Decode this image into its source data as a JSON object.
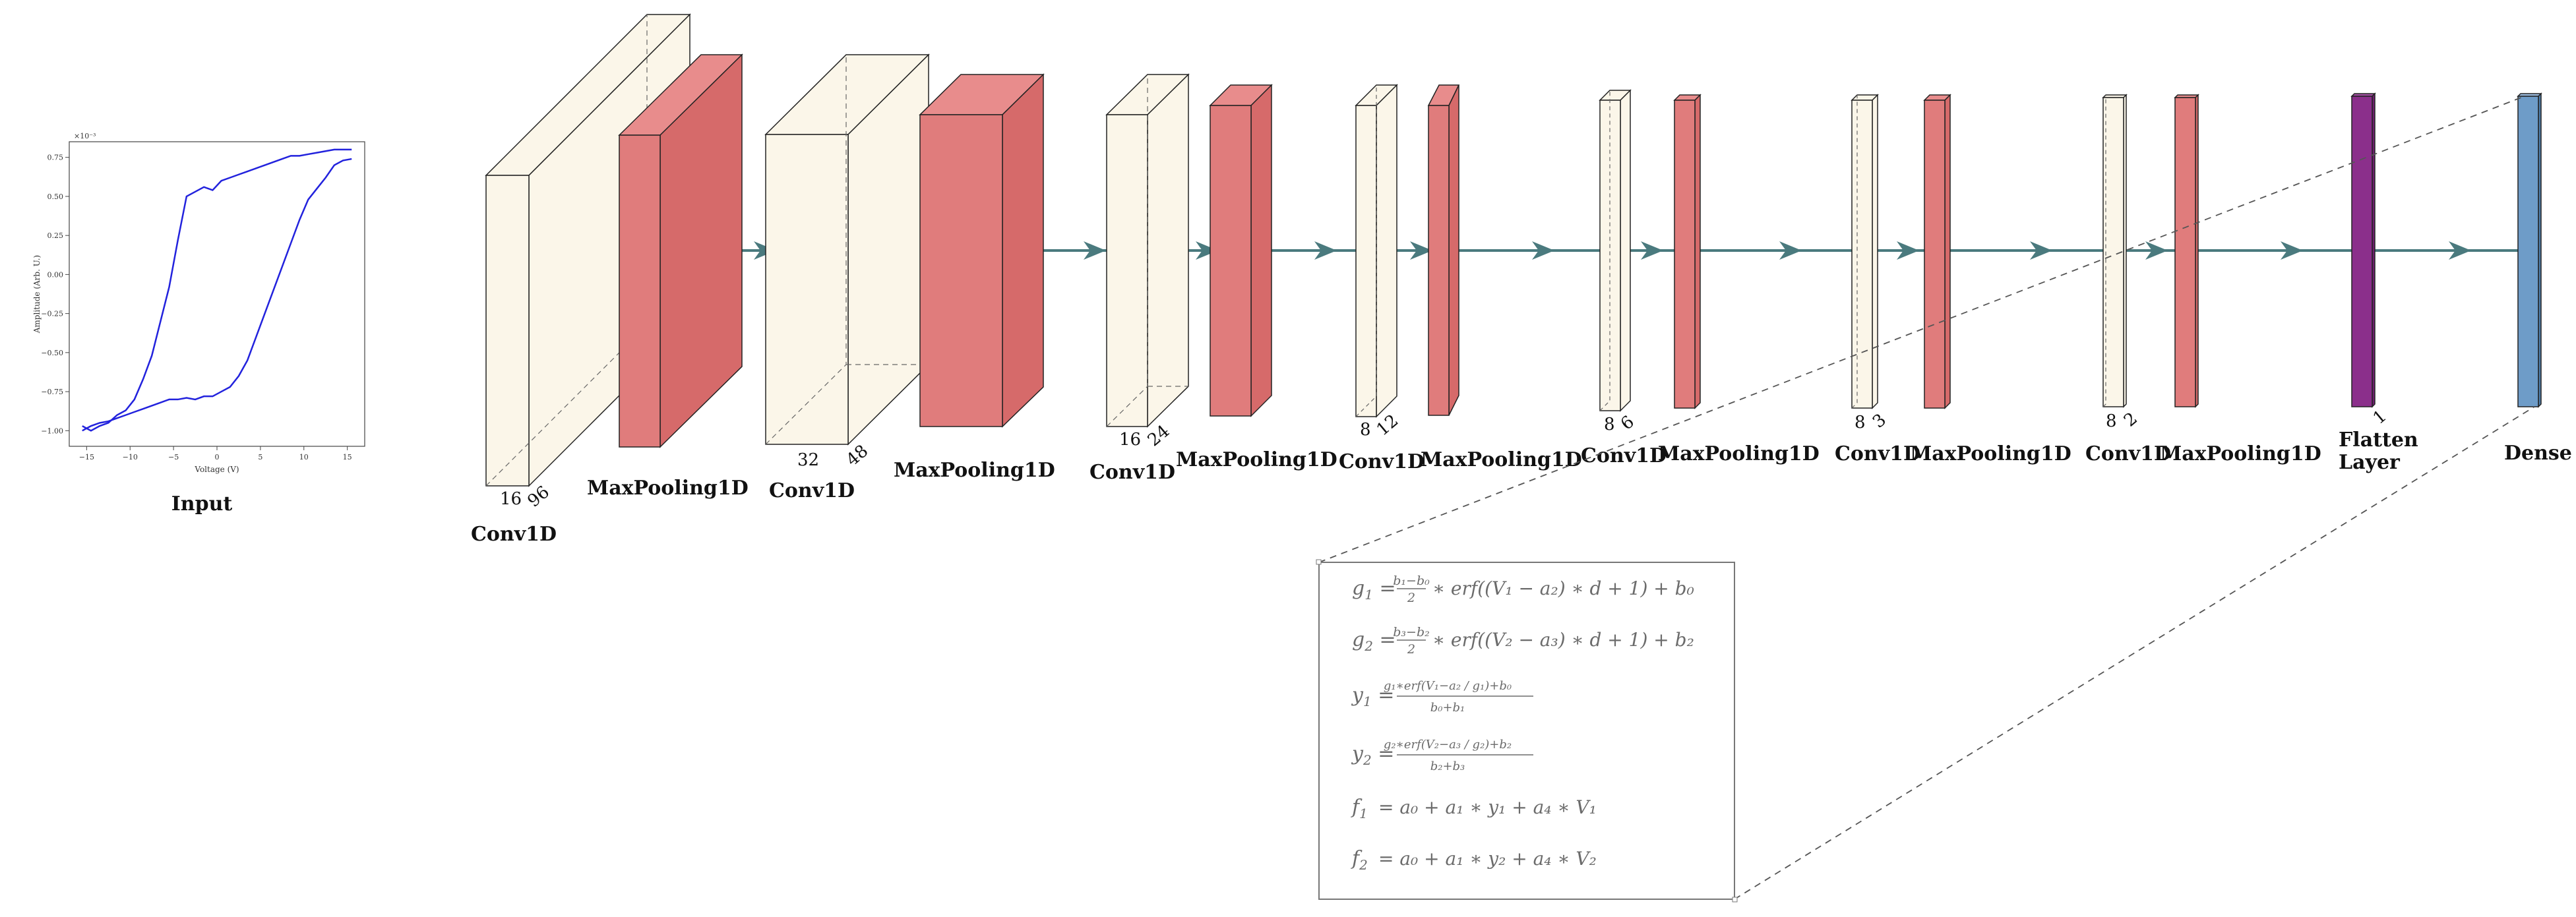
{
  "input": {
    "label": "Input",
    "chart_data": {
      "type": "line",
      "xlabel": "Voltage (V)",
      "ylabel": "Amplitude (Arb. U.)",
      "exponent": "×10⁻³",
      "xlim": [
        -17,
        17
      ],
      "ylim": [
        -1.1,
        0.85
      ],
      "xticks": [
        -15,
        -10,
        -5,
        0,
        5,
        10,
        15
      ],
      "yticks": [
        -1.0,
        -0.75,
        -0.5,
        -0.25,
        0.0,
        0.25,
        0.5,
        0.75
      ],
      "xtick_labels": [
        "−15",
        "−10",
        "−5",
        "0",
        "5",
        "10",
        "15"
      ],
      "ytick_labels": [
        "−1.00",
        "−0.75",
        "−0.50",
        "−0.25",
        "0.00",
        "0.25",
        "0.50",
        "0.75"
      ],
      "color": "#2222dd",
      "series": [
        {
          "x": [
            -15.5,
            -14.5,
            -13.5,
            -12.5,
            -11.5,
            -10.5,
            -9.5,
            -8.5,
            -7.5,
            -6.5,
            -5.5,
            -4.5,
            -3.5,
            -2.5,
            -1.5,
            -0.5,
            0.5,
            1.5,
            2.5,
            3.5,
            4.5,
            5.5,
            6.5,
            7.5,
            8.5,
            9.5,
            10.5,
            11.5,
            12.5,
            13.5,
            14.5,
            15.5
          ],
          "y": [
            -0.97,
            -1.0,
            -0.97,
            -0.95,
            -0.9,
            -0.87,
            -0.8,
            -0.67,
            -0.52,
            -0.3,
            -0.08,
            0.22,
            0.5,
            0.53,
            0.56,
            0.54,
            0.6,
            0.62,
            0.64,
            0.66,
            0.68,
            0.7,
            0.72,
            0.74,
            0.76,
            0.76,
            0.77,
            0.78,
            0.79,
            0.8,
            0.8,
            0.8
          ]
        },
        {
          "x": [
            -15.5,
            -14.5,
            -13.5,
            -12.5,
            -11.5,
            -10.5,
            -9.5,
            -8.5,
            -7.5,
            -6.5,
            -5.5,
            -4.5,
            -3.5,
            -2.5,
            -1.5,
            -0.5,
            0.5,
            1.5,
            2.5,
            3.5,
            4.5,
            5.5,
            6.5,
            7.5,
            8.5,
            9.5,
            10.5,
            11.5,
            12.5,
            13.5,
            14.5,
            15.5
          ],
          "y": [
            -1.0,
            -0.97,
            -0.95,
            -0.94,
            -0.92,
            -0.9,
            -0.88,
            -0.86,
            -0.84,
            -0.82,
            -0.8,
            -0.8,
            -0.79,
            -0.8,
            -0.78,
            -0.78,
            -0.75,
            -0.72,
            -0.65,
            -0.55,
            -0.4,
            -0.25,
            -0.1,
            0.05,
            0.2,
            0.35,
            0.48,
            0.55,
            0.62,
            0.7,
            0.73,
            0.74
          ]
        }
      ]
    }
  },
  "layers": [
    {
      "label": "Conv1D",
      "dim_a": "16",
      "dim_b": "96"
    },
    {
      "label": "MaxPooling1D",
      "dim_a": "",
      "dim_b": ""
    },
    {
      "label": "Conv1D",
      "dim_a": "32",
      "dim_b": "48"
    },
    {
      "label": "MaxPooling1D",
      "dim_a": "",
      "dim_b": ""
    },
    {
      "label": "Conv1D",
      "dim_a": "16",
      "dim_b": "24"
    },
    {
      "label": "MaxPooling1D",
      "dim_a": "",
      "dim_b": ""
    },
    {
      "label": "Conv1D",
      "dim_a": "8",
      "dim_b": "12"
    },
    {
      "label": "MaxPooling1D",
      "dim_a": "",
      "dim_b": ""
    },
    {
      "label": "Conv1D",
      "dim_a": "8",
      "dim_b": "6"
    },
    {
      "label": "MaxPooling1D",
      "dim_a": "",
      "dim_b": ""
    },
    {
      "label": "Conv1D",
      "dim_a": "8",
      "dim_b": "3"
    },
    {
      "label": "MaxPooling1D",
      "dim_a": "",
      "dim_b": ""
    },
    {
      "label": "Conv1D",
      "dim_a": "8",
      "dim_b": "2"
    },
    {
      "label": "MaxPooling1D",
      "dim_a": "",
      "dim_b": ""
    },
    {
      "label_line1": "Flatten",
      "label_line2": "Layer",
      "dim_b": "1"
    },
    {
      "label": "Dense"
    }
  ],
  "colors": {
    "conv": "#fbf6e9",
    "pool": "#e07c7c",
    "flatten": "#8b2f8b",
    "dense": "#6e9cc8",
    "arrow": "#4a7a7e",
    "equation_text": "#6b6b6b"
  },
  "equations": [
    {
      "lhs": "g",
      "lhs_sub": "1",
      "rhs_pre": "· erf((V₁ − a₂) ∗ d + 1) + b₀",
      "frac_num": "b₁−b₀",
      "frac_den": "2",
      "suffix": "∗ erf((V₁ − a₂) ∗ d + 1) + b₀"
    },
    {
      "lhs": "g",
      "lhs_sub": "2",
      "frac_num": "b₃−b₂",
      "frac_den": "2",
      "suffix": "∗ erf((V₂ − a₃) ∗ d + 1) + b₂"
    },
    {
      "lhs": "y",
      "lhs_sub": "1",
      "frac_num": "g₁∗erf(V₁−a₂ / g₁)+b₀",
      "frac_den": "b₀+b₁",
      "suffix": ""
    },
    {
      "lhs": "y",
      "lhs_sub": "2",
      "frac_num": "g₂∗erf(V₂−a₃ / g₂)+b₂",
      "frac_den": "b₂+b₃",
      "suffix": ""
    },
    {
      "lhs": "f",
      "lhs_sub": "1",
      "suffix": "= a₀ + a₁ ∗ y₁ + a₄ ∗ V₁"
    },
    {
      "lhs": "f",
      "lhs_sub": "2",
      "suffix": "= a₀ + a₁ ∗ y₂ + a₄ ∗ V₂"
    }
  ]
}
